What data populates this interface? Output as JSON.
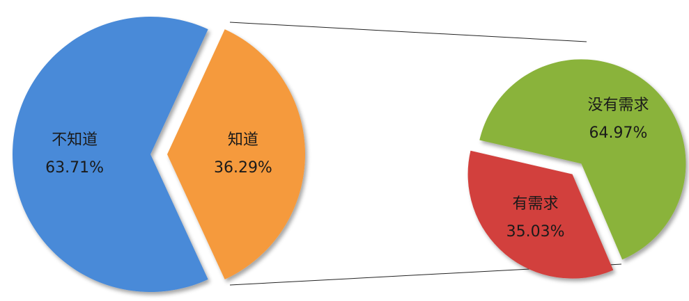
{
  "chart_data": [
    {
      "type": "pie",
      "categories": [
        "不知道",
        "知道"
      ],
      "values": [
        63.71,
        36.29
      ],
      "value_labels": [
        "63.71%",
        "36.29%"
      ],
      "colors": [
        "#4a8ad8",
        "#f59a3c"
      ]
    },
    {
      "type": "pie",
      "categories": [
        "没有需求",
        "有需求"
      ],
      "values": [
        64.97,
        35.03
      ],
      "value_labels": [
        "64.97%",
        "35.03%"
      ],
      "colors": [
        "#8ab33a",
        "#d2403c"
      ]
    }
  ]
}
